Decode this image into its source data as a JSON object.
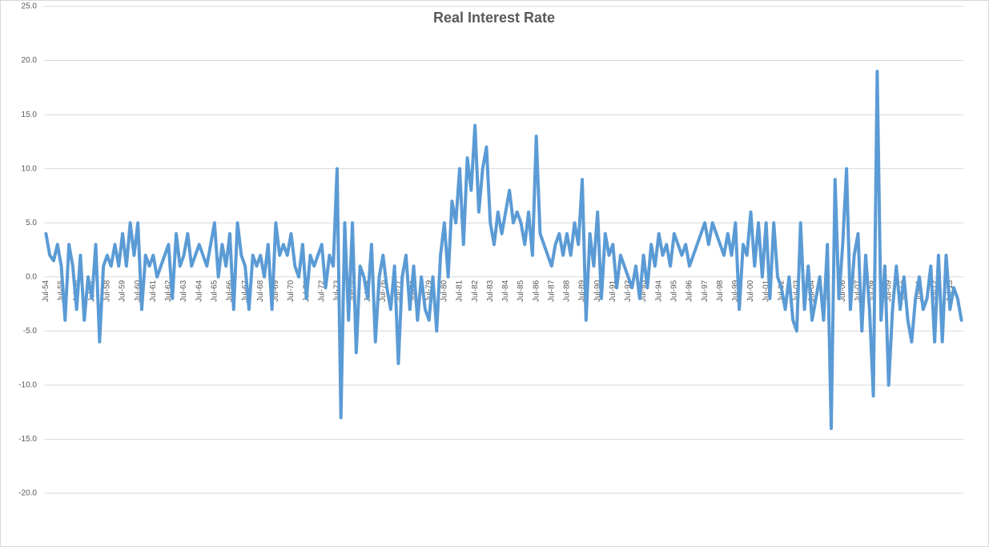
{
  "chart_data": {
    "type": "line",
    "title": "Real Interest Rate",
    "categories": [
      "Jul-54",
      null,
      null,
      null,
      "Jul-55",
      null,
      null,
      null,
      "Jul-56",
      null,
      null,
      null,
      "Jul-57",
      null,
      null,
      null,
      "Jul-58",
      null,
      null,
      null,
      "Jul-59",
      null,
      null,
      null,
      "Jul-60",
      null,
      null,
      null,
      "Jul-61",
      null,
      null,
      null,
      "Jul-62",
      null,
      null,
      null,
      "Jul-63",
      null,
      null,
      null,
      "Jul-64",
      null,
      null,
      null,
      "Jul-65",
      null,
      null,
      null,
      "Jul-66",
      null,
      null,
      null,
      "Jul-67",
      null,
      null,
      null,
      "Jul-68",
      null,
      null,
      null,
      "Jul-69",
      null,
      null,
      null,
      "Jul-70",
      null,
      null,
      null,
      "Jul-71",
      null,
      null,
      null,
      "Jul-72",
      null,
      null,
      null,
      "Jul-73",
      null,
      null,
      null,
      "Jul-74",
      null,
      null,
      null,
      "Jul-75",
      null,
      null,
      null,
      "Jul-76",
      null,
      null,
      null,
      "Jul-77",
      null,
      null,
      null,
      "Jul-78",
      null,
      null,
      null,
      "Jul-79",
      null,
      null,
      null,
      "Jul-80",
      null,
      null,
      null,
      "Jul-81",
      null,
      null,
      null,
      "Jul-82",
      null,
      null,
      null,
      "Jul-83",
      null,
      null,
      null,
      "Jul-84",
      null,
      null,
      null,
      "Jul-85",
      null,
      null,
      null,
      "Jul-86",
      null,
      null,
      null,
      "Jul-87",
      null,
      null,
      null,
      "Jul-88",
      null,
      null,
      null,
      "Jul-89",
      null,
      null,
      null,
      "Jul-90",
      null,
      null,
      null,
      "Jul-91",
      null,
      null,
      null,
      "Jul-92",
      null,
      null,
      null,
      "Jul-93",
      null,
      null,
      null,
      "Jul-94",
      null,
      null,
      null,
      "Jul-95",
      null,
      null,
      null,
      "Jul-96",
      null,
      null,
      null,
      "Jul-97",
      null,
      null,
      null,
      "Jul-98",
      null,
      null,
      null,
      "Jul-99",
      null,
      null,
      null,
      "Jul-00",
      null,
      null,
      null,
      "Jul-01",
      null,
      null,
      null,
      "Jul-02",
      null,
      null,
      null,
      "Jul-03",
      null,
      null,
      null,
      "Jul-04",
      null,
      null,
      null,
      "Jul-05",
      null,
      null,
      null,
      "Jul-06",
      null,
      null,
      null,
      "Jul-07",
      null,
      null,
      null,
      "Jul-08",
      null,
      null,
      null,
      "Jul-09",
      null,
      null,
      null,
      "Jul-10",
      null,
      null,
      null,
      "Jul-11",
      null,
      null,
      null,
      "Jul-12",
      null,
      null,
      null,
      "Jul-13",
      null,
      null,
      null
    ],
    "values": [
      4,
      2,
      1.5,
      3,
      1,
      -4,
      3,
      1,
      -3,
      2,
      -4,
      0,
      -2,
      3,
      -6,
      1,
      2,
      1,
      3,
      1,
      4,
      1,
      5,
      2,
      5,
      -3,
      2,
      1,
      2,
      0,
      1,
      2,
      3,
      -2,
      4,
      1,
      2,
      4,
      1,
      2,
      3,
      2,
      1,
      3,
      5,
      0,
      3,
      1,
      4,
      -3,
      5,
      2,
      1,
      -3,
      2,
      1,
      2,
      0,
      3,
      -3,
      5,
      2,
      3,
      2,
      4,
      1,
      0,
      3,
      -2,
      2,
      1,
      2,
      3,
      -1,
      2,
      1,
      10,
      -13,
      5,
      -4,
      5,
      -7,
      1,
      0,
      -2,
      3,
      -6,
      0,
      2,
      -1,
      -3,
      1,
      -8,
      0,
      2,
      -3,
      1,
      -4,
      0,
      -3,
      -4,
      0,
      -5,
      2,
      5,
      0,
      7,
      5,
      10,
      3,
      11,
      8,
      14,
      6,
      10,
      12,
      5,
      3,
      6,
      4,
      6,
      8,
      5,
      6,
      5,
      3,
      6,
      2,
      13,
      4,
      3,
      2,
      1,
      3,
      4,
      2,
      4,
      2,
      5,
      3,
      9,
      -4,
      4,
      1,
      6,
      -2,
      4,
      2,
      3,
      -1,
      2,
      1,
      0,
      -1,
      1,
      -2,
      2,
      -1,
      3,
      1,
      4,
      2,
      3,
      1,
      4,
      3,
      2,
      3,
      1,
      2,
      3,
      4,
      5,
      3,
      5,
      4,
      3,
      2,
      4,
      2,
      5,
      -3,
      3,
      2,
      6,
      1,
      5,
      0,
      5,
      -2,
      5,
      0,
      -1,
      -3,
      0,
      -4,
      -5,
      5,
      -3,
      1,
      -4,
      -2,
      0,
      -4,
      3,
      -14,
      9,
      -2,
      3,
      10,
      -3,
      2,
      4,
      -5,
      2,
      -3,
      -11,
      19,
      -4,
      1,
      -10,
      -3,
      1,
      -3,
      0,
      -4,
      -6,
      -2,
      0,
      -3,
      -2,
      1,
      -6,
      2,
      -6,
      2,
      -3,
      -1,
      -2,
      -4
    ],
    "color": "#5b9bd5",
    "ylim": [
      -20,
      25
    ],
    "yticks": [
      {
        "value": 25,
        "label": "25.0"
      },
      {
        "value": 20,
        "label": "20.0"
      },
      {
        "value": 15,
        "label": "15.0"
      },
      {
        "value": 10,
        "label": "10.0"
      },
      {
        "value": 5,
        "label": "5.0"
      },
      {
        "value": 0,
        "label": "0.0"
      },
      {
        "value": -5,
        "label": "-5.0"
      },
      {
        "value": -10,
        "label": "-10.0"
      },
      {
        "value": -15,
        "label": "-15.0"
      },
      {
        "value": -20,
        "label": "-20.0"
      }
    ],
    "grid": true
  }
}
